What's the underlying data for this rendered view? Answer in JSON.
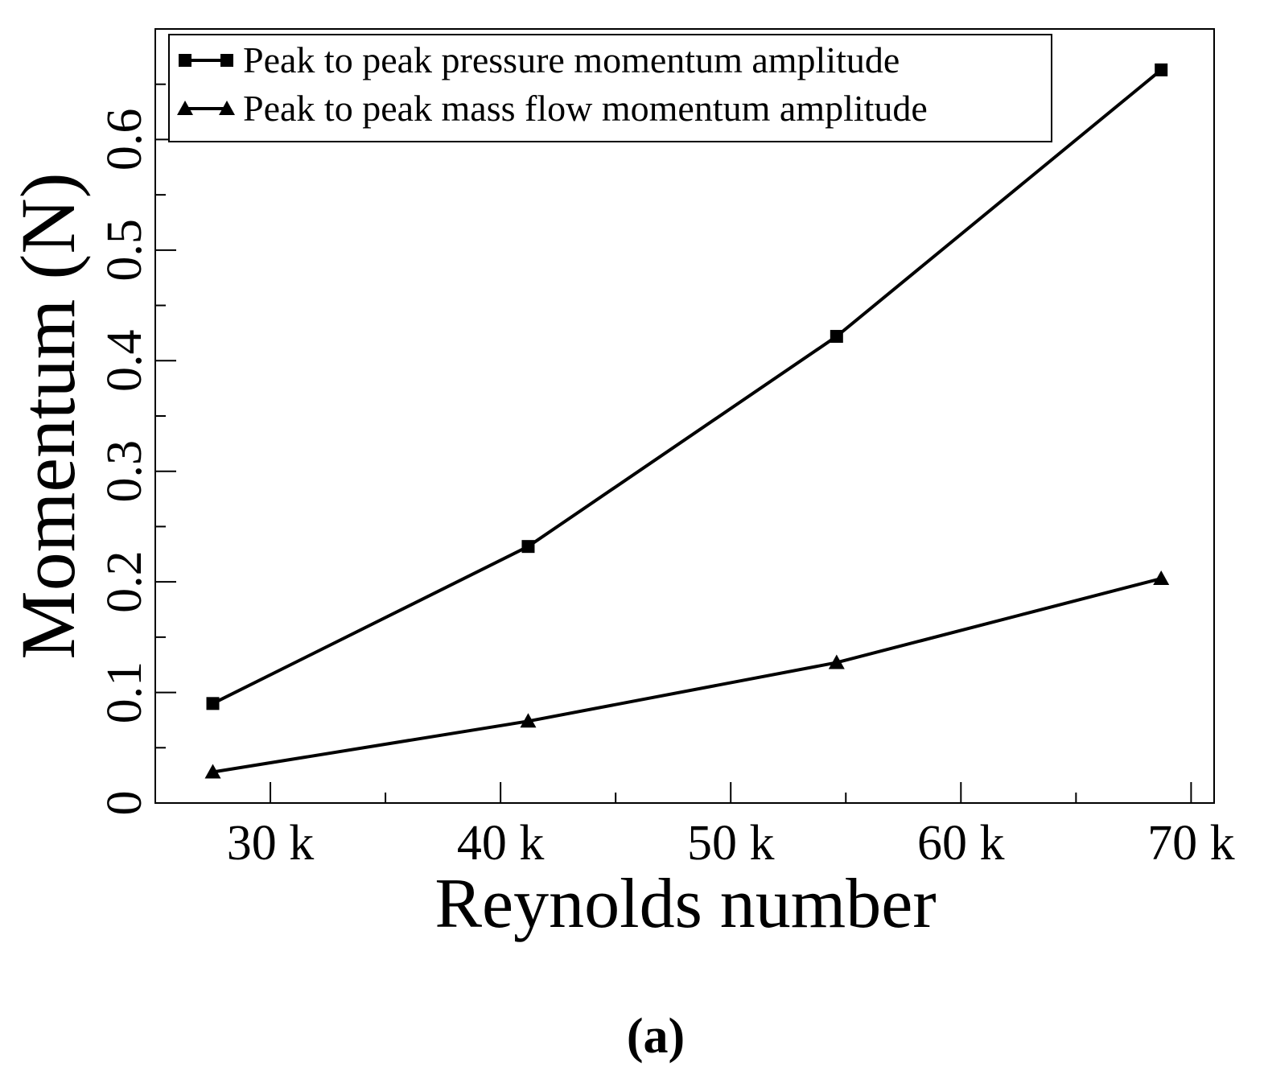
{
  "chart_data": {
    "type": "line",
    "x_label": "Reynolds number",
    "y_label": "Momentum (N)",
    "caption": "(a)",
    "series": [
      {
        "name": "Peak to peak pressure momentum amplitude",
        "color": "#000000",
        "marker": "square",
        "x": [
          27500,
          41200,
          54600,
          68700
        ],
        "values": [
          0.09,
          0.232,
          0.422,
          0.663
        ]
      },
      {
        "name": "Peak to peak mass flow momentum amplitude",
        "color": "#000000",
        "marker": "triangle",
        "x": [
          27500,
          41200,
          54600,
          68700
        ],
        "values": [
          0.028,
          0.074,
          0.127,
          0.203
        ]
      }
    ],
    "xlim": [
      25000,
      71000
    ],
    "xticks": [
      {
        "value": 30000,
        "label": "30 k"
      },
      {
        "value": 40000,
        "label": "40 k"
      },
      {
        "value": 50000,
        "label": "50 k"
      },
      {
        "value": 60000,
        "label": "60 k"
      },
      {
        "value": 70000,
        "label": "70 k"
      }
    ],
    "minor_xticks": [
      35000,
      45000,
      55000,
      65000
    ],
    "ylim": [
      0,
      0.7
    ],
    "yticks": [
      0,
      0.1,
      0.2,
      0.3,
      0.4,
      0.5,
      0.6
    ],
    "minor_yticks": [
      0.05,
      0.15,
      0.25,
      0.35,
      0.45,
      0.55,
      0.65
    ],
    "legend": "top-left"
  }
}
